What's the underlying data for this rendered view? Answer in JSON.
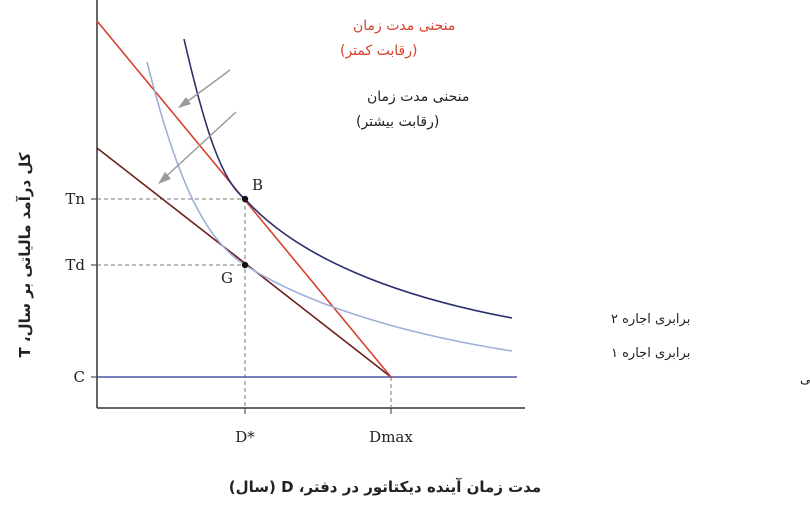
{
  "chart_data": {
    "type": "line",
    "xlabel": "مدت زمان آینده دیکتاتور در دفتر، D (سال)",
    "ylabel": "کل درآمد مالیاتی بر سال، T",
    "x_ticks": [
      "D*",
      "Dmax"
    ],
    "y_ticks": [
      "Tn",
      "Td",
      "C"
    ],
    "points": [
      {
        "name": "B",
        "x": "D*",
        "y": "Tn"
      },
      {
        "name": "G",
        "x": "D*",
        "y": "Td"
      }
    ],
    "series": [
      {
        "name": "برابری اجاره ۲",
        "color": "#2b2f6e"
      },
      {
        "name": "برابری اجاره ۱",
        "color": "#9fb0d8"
      },
      {
        "name": "هزینه سالانه فراهم کردن خدمات عمومی",
        "color": "#4a56a8"
      }
    ],
    "lines": [
      {
        "color": "#d6402f",
        "annotation": [
          "منحنی مدت زمان",
          "(رقابت کمتر)"
        ]
      },
      {
        "color": "#6b1f1a",
        "annotation": [
          "منحنی مدت زمان",
          "(رقابت بیشتر)"
        ]
      }
    ]
  }
}
